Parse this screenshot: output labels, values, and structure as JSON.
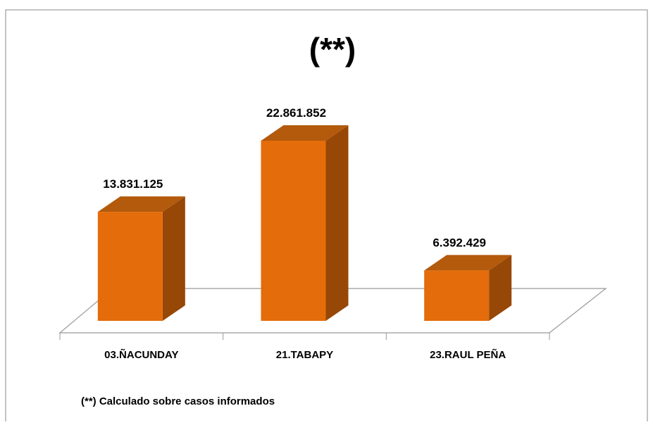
{
  "chart_data": {
    "type": "bar3d",
    "title": "(**)",
    "categories": [
      "03.ÑACUNDAY",
      "21.TABAPY",
      "23.RAUL PEÑA"
    ],
    "values": [
      13831125,
      22861852,
      6392429
    ],
    "value_labels": [
      "13.831.125",
      "22.861.852",
      "6.392.429"
    ],
    "color": "#e46c0a",
    "note": "(**) Calculado sobre casos informados"
  }
}
